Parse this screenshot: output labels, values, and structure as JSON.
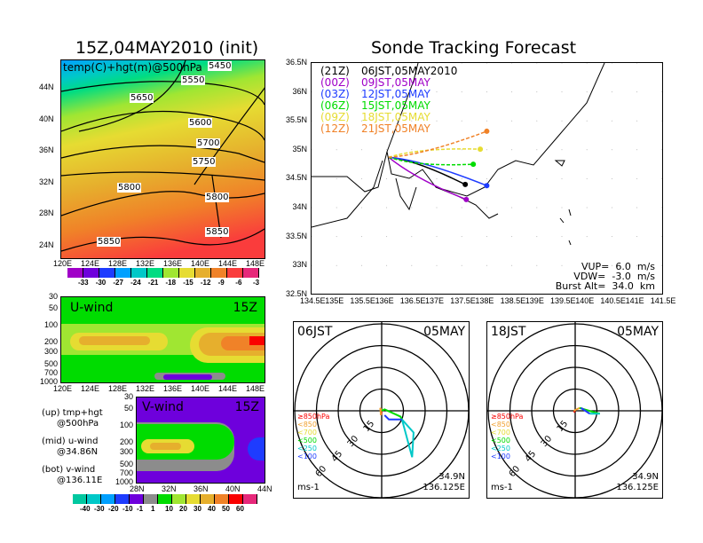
{
  "left": {
    "title": "15Z,04MAY2010 (init)",
    "map_label": "temp(C)+hgt(m)@500hPa",
    "lat_ticks": [
      "44N",
      "40N",
      "36N",
      "32N",
      "28N",
      "24N"
    ],
    "lon_ticks": [
      "120E",
      "124E",
      "128E",
      "132E",
      "136E",
      "140E",
      "144E",
      "148E"
    ],
    "contour_labels": [
      "5450",
      "5550",
      "5650",
      "5600",
      "5700",
      "5750",
      "5800",
      "5800",
      "5850",
      "5850"
    ],
    "temp_colorbar": {
      "labels": [
        "-33",
        "-30",
        "-27",
        "-24",
        "-21",
        "-18",
        "-15",
        "-12",
        "-9",
        "-6",
        "-3"
      ],
      "colors": [
        "#a000c8",
        "#6e00dc",
        "#1e3cff",
        "#00a0ff",
        "#00c8c8",
        "#00dc82",
        "#a0e632",
        "#e6dc32",
        "#e6af2d",
        "#f08228",
        "#fa3c3c",
        "#e6287a"
      ]
    },
    "uwind": {
      "label": "U-wind",
      "time": "15Z",
      "p_ticks": [
        "30",
        "50",
        "100",
        "200",
        "300",
        "500",
        "700",
        "1000"
      ],
      "lon_ticks": [
        "120E",
        "124E",
        "128E",
        "132E",
        "136E",
        "140E",
        "144E",
        "148E"
      ]
    },
    "vwind": {
      "label": "V-wind",
      "time": "15Z",
      "p_ticks": [
        "30",
        "50",
        "100",
        "200",
        "300",
        "500",
        "700",
        "1000"
      ],
      "lat_ticks": [
        "28N",
        "32N",
        "36N",
        "40N",
        "44N"
      ]
    },
    "notes": [
      "(up) tmp+hgt",
      "@500hPa",
      "(mid) u-wind",
      "@34.86N",
      "(bot) v-wind",
      "@136.11E"
    ],
    "wind_colorbar": {
      "labels": [
        "-40",
        "-30",
        "-20",
        "-10",
        "-1",
        "1",
        "10",
        "20",
        "30",
        "40",
        "50",
        "60"
      ],
      "colors": [
        "#00c8a0",
        "#00c8c8",
        "#00a0ff",
        "#1e3cff",
        "#6e00dc",
        "#8c8c8c",
        "#00dc00",
        "#a0e632",
        "#e6dc32",
        "#e6af2d",
        "#f08228",
        "#fa0000",
        "#e6287a"
      ]
    }
  },
  "right": {
    "title": "Sonde Tracking Forecast",
    "lat_ticks": [
      "36.5N",
      "36N",
      "35.5N",
      "35N",
      "34.5N",
      "34N",
      "33.5N",
      "33N",
      "32.5N"
    ],
    "lon_ticks": [
      "134.5E",
      "135E",
      "135.5E",
      "136E",
      "136.5E",
      "137E",
      "137.5E",
      "138E",
      "138.5E",
      "139E",
      "139.5E",
      "140E",
      "140.5E",
      "141E",
      "141.5E"
    ],
    "legend": [
      {
        "z": "(21Z)",
        "t": "06JST,05MAY2010",
        "color": "#000000"
      },
      {
        "z": "(00Z)",
        "t": "09JST,05MAY",
        "color": "#a000c8"
      },
      {
        "z": "(03Z)",
        "t": "12JST,05MAY",
        "color": "#1e3cff"
      },
      {
        "z": "(06Z)",
        "t": "15JST,05MAY",
        "color": "#00dc00"
      },
      {
        "z": "(09Z)",
        "t": "18JST,05MAY",
        "color": "#e6dc32"
      },
      {
        "z": "(12Z)",
        "t": "21JST,05MAY",
        "color": "#f08228"
      }
    ],
    "launch": {
      "lon": 136.04,
      "lat": 34.87
    },
    "track_ends": [
      {
        "lon": 137.57,
        "lat": 34.4,
        "color": "#000000"
      },
      {
        "lon": 137.59,
        "lat": 34.14,
        "color": "#a000c8"
      },
      {
        "lon": 138.0,
        "lat": 34.38,
        "color": "#1e3cff"
      },
      {
        "lon": 137.73,
        "lat": 34.75,
        "color": "#00dc00"
      },
      {
        "lon": 137.87,
        "lat": 35.01,
        "color": "#e6dc32"
      },
      {
        "lon": 138.0,
        "lat": 35.32,
        "color": "#f08228"
      }
    ],
    "params": [
      "VUP=  6.0  m/s",
      "VDW=  -3.0  m/s",
      "Burst Alt=  34.0  km"
    ]
  },
  "hodographs": [
    {
      "time": "06JST",
      "date": "05MAY",
      "lat": "34.9N",
      "lon": "136.125E",
      "unit": "ms-1",
      "segments": [
        {
          "color": "#fa0000",
          "pts": [
            [
              0,
              0
            ],
            [
              -0.5,
              -3
            ]
          ]
        },
        {
          "color": "#f0a030",
          "pts": [
            [
              -0.5,
              -3
            ],
            [
              -1,
              2
            ],
            [
              0,
              0
            ]
          ]
        },
        {
          "color": "#00dc00",
          "pts": [
            [
              0,
              0
            ],
            [
              2,
              1
            ],
            [
              13,
              -4
            ],
            [
              14,
              -6
            ]
          ]
        },
        {
          "color": "#00c8c8",
          "pts": [
            [
              14,
              -6
            ],
            [
              22,
              -15
            ],
            [
              21,
              -32
            ],
            [
              14,
              -6
            ]
          ]
        },
        {
          "color": "#1e3cff",
          "pts": [
            [
              14,
              -6
            ],
            [
              5,
              -6
            ],
            [
              2,
              -3
            ]
          ]
        }
      ]
    },
    {
      "time": "18JST",
      "date": "05MAY",
      "lat": "34.9N",
      "lon": "136.125E",
      "unit": "ms-1",
      "segments": [
        {
          "color": "#fa0000",
          "pts": [
            [
              0,
              0
            ],
            [
              -1,
              -1
            ]
          ]
        },
        {
          "color": "#f0a030",
          "pts": [
            [
              -1,
              0
            ],
            [
              3,
              2
            ]
          ]
        },
        {
          "color": "#00dc00",
          "pts": [
            [
              3,
              2
            ],
            [
              13,
              -1
            ],
            [
              17,
              -2
            ]
          ]
        },
        {
          "color": "#00c8c8",
          "pts": [
            [
              17,
              -2
            ],
            [
              10,
              -2
            ]
          ]
        },
        {
          "color": "#1e3cff",
          "pts": [
            [
              10,
              -2
            ],
            [
              4,
              2
            ]
          ]
        }
      ]
    }
  ],
  "hodo_rings": [
    "15",
    "30",
    "45",
    "60"
  ],
  "hodo_legend": [
    "≥850hPa",
    "<850",
    "<700",
    "<500",
    "<250",
    "<100"
  ],
  "hodo_legend_colors": [
    "#fa0000",
    "#f0a030",
    "#e6dc32",
    "#00dc00",
    "#00c8c8",
    "#1e3cff"
  ]
}
